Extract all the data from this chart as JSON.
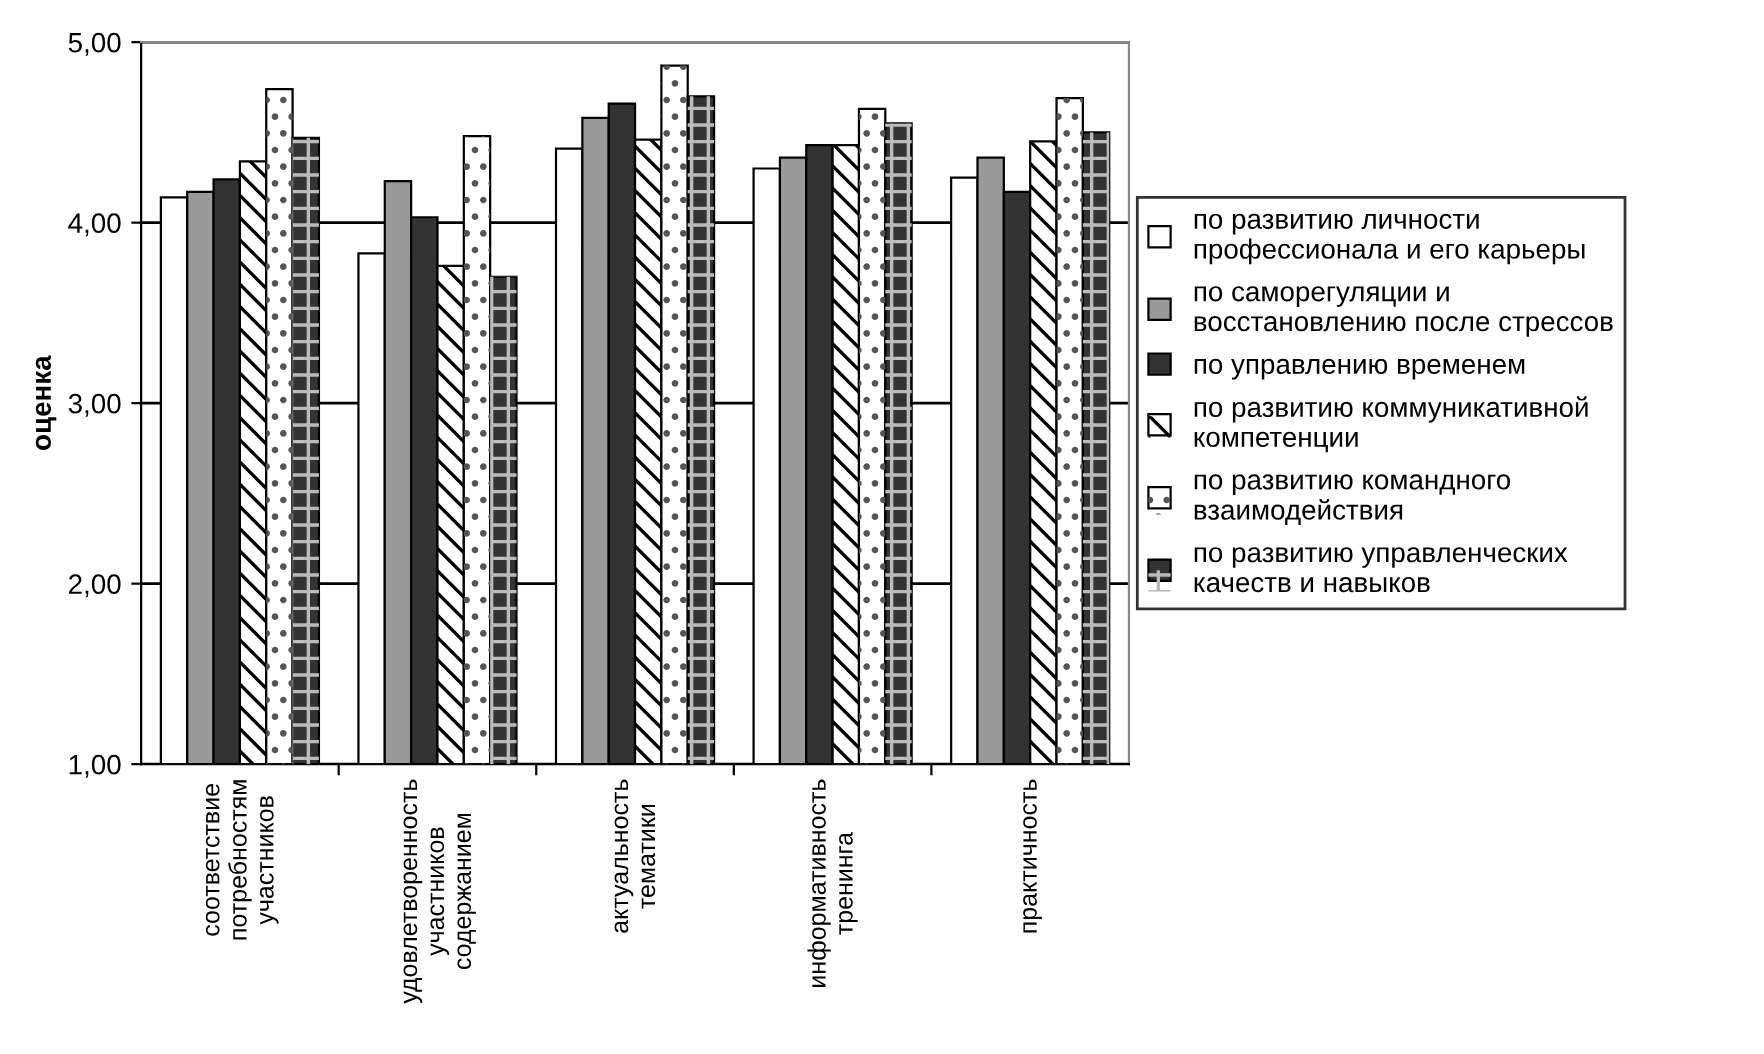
{
  "chart_data": {
    "type": "bar",
    "ylabel": "оценка",
    "categories": [
      "соответствие\nпотребностям\nучастников",
      "удовлетворенность\nучастников\nсодержанием",
      "актуальность\nтематики",
      "информативность\nтренинга",
      "практичность"
    ],
    "series": [
      {
        "name": "по развитию личности\nпрофессионала и его карьеры",
        "color": "#ffffff",
        "values": [
          4.14,
          3.83,
          4.41,
          4.3,
          4.25
        ]
      },
      {
        "name": "по саморегуляции и\nвосстановлению после стрессов",
        "color": "#999999",
        "values": [
          4.17,
          4.23,
          4.58,
          4.36,
          4.36
        ]
      },
      {
        "name": "по управлению временем",
        "color": "#333333",
        "values": [
          4.24,
          4.03,
          4.66,
          4.43,
          4.17
        ]
      },
      {
        "name": "по развитию коммуникативной\nкомпетенции",
        "color": "#ffffff",
        "values": [
          4.34,
          3.76,
          4.46,
          4.43,
          4.45
        ]
      },
      {
        "name": "по развитию командного\nвзаимодействия",
        "color": "#ffffff",
        "values": [
          4.74,
          4.48,
          4.87,
          4.63,
          4.69
        ]
      },
      {
        "name": "по развитию управленческих\nкачеств и навыков",
        "color": "#333333",
        "values": [
          4.47,
          3.7,
          4.7,
          4.55,
          4.5
        ]
      }
    ],
    "ylim": [
      1,
      5
    ],
    "yticks": [
      {
        "value": 1,
        "label": "1,00"
      },
      {
        "value": 2,
        "label": "2,00"
      },
      {
        "value": 3,
        "label": "3,00"
      },
      {
        "value": 4,
        "label": "4,00"
      },
      {
        "value": 5,
        "label": "5,00"
      }
    ],
    "grid": "y",
    "legend": "right"
  }
}
